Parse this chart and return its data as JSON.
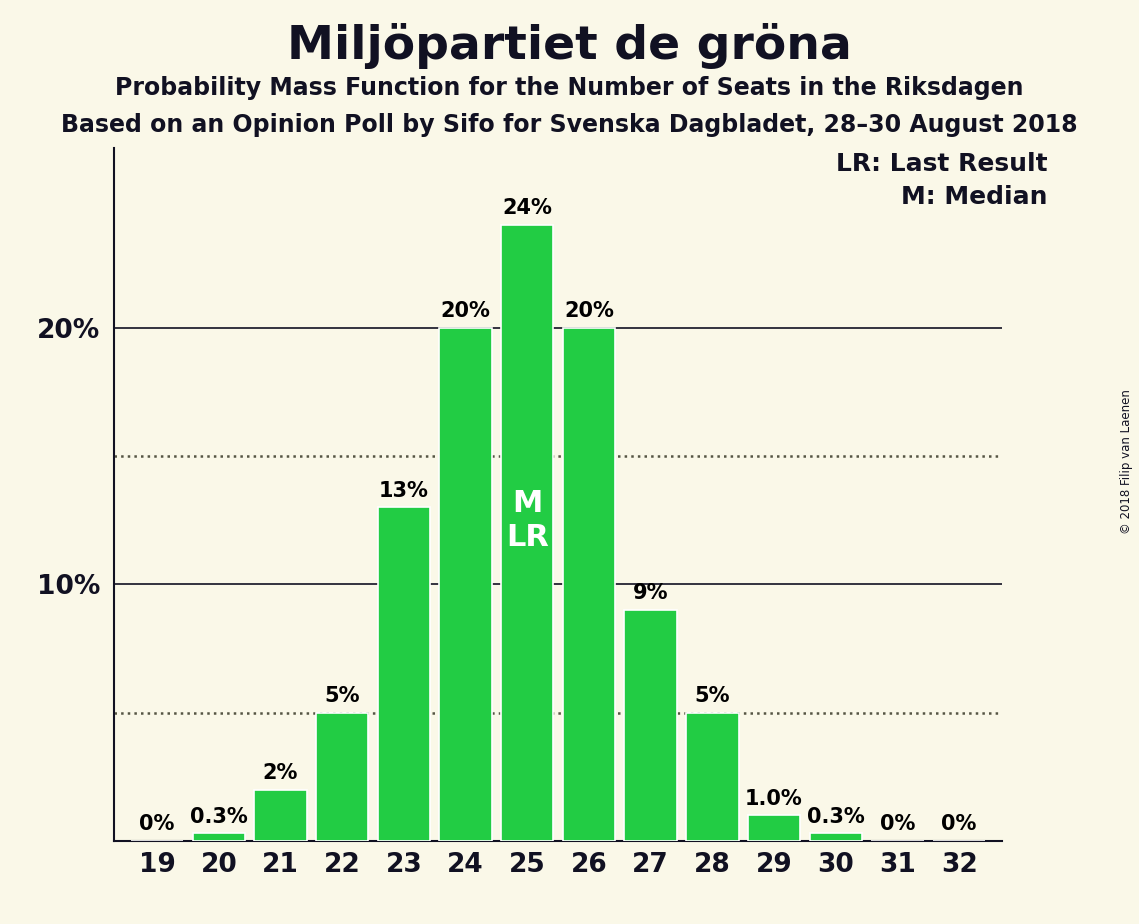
{
  "title": "Miljöpartiet de gröna",
  "subtitle1": "Probability Mass Function for the Number of Seats in the Riksdagen",
  "subtitle2": "Based on an Opinion Poll by Sifo for Svenska Dagbladet, 28–30 August 2018",
  "copyright": "© 2018 Filip van Laenen",
  "legend_lr": "LR: Last Result",
  "legend_m": "M: Median",
  "seats": [
    19,
    20,
    21,
    22,
    23,
    24,
    25,
    26,
    27,
    28,
    29,
    30,
    31,
    32
  ],
  "probabilities": [
    0.0,
    0.3,
    2.0,
    5.0,
    13.0,
    20.0,
    24.0,
    20.0,
    9.0,
    5.0,
    1.0,
    0.3,
    0.0,
    0.0
  ],
  "bar_color": "#22cc44",
  "background_color": "#faf8e8",
  "median_seat": 25,
  "lr_seat": 25,
  "ylim": [
    0,
    27
  ],
  "solid_lines": [
    10.0,
    20.0
  ],
  "dotted_lines": [
    5.0,
    15.0
  ],
  "bar_width": 0.85,
  "title_fontsize": 34,
  "subtitle_fontsize": 17,
  "tick_fontsize": 19,
  "label_fontsize": 15,
  "legend_fontsize": 18
}
